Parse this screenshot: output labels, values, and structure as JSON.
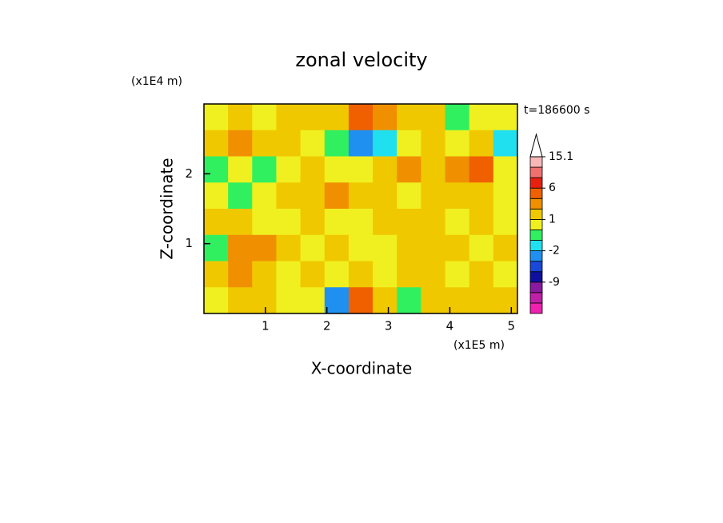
{
  "chart_data": {
    "type": "contour",
    "title": "zonal velocity",
    "time_label": "t=186600 s",
    "x_label": "X-coordinate",
    "y_label": "Z-coordinate",
    "x_unit": "(x1E5 m)",
    "y_unit": "(x1E4 m)",
    "xlim": [
      0,
      5.1
    ],
    "ylim": [
      0,
      3
    ],
    "xticks": [
      1,
      2,
      3,
      4,
      5
    ],
    "yticks": [
      1,
      2
    ],
    "z": [
      [
        0.5,
        1.5,
        0.5,
        1.5,
        1.5,
        1.5,
        3.5,
        2.5,
        1.5,
        1.5,
        -0.5,
        0.5,
        0.5
      ],
      [
        1.5,
        2.5,
        1.5,
        1.5,
        0.5,
        -0.5,
        -2.5,
        -1.5,
        0.5,
        1.5,
        0.5,
        1.5,
        -1.5
      ],
      [
        -0.5,
        0.5,
        -0.5,
        0.5,
        1.5,
        0.5,
        0.5,
        1.5,
        2.5,
        1.5,
        2.5,
        4.5,
        0.5
      ],
      [
        0.5,
        -0.5,
        0.5,
        1.5,
        1.5,
        2.5,
        1.5,
        1.5,
        0.5,
        1.5,
        1.5,
        1.5,
        0.5
      ],
      [
        1.5,
        1.5,
        0.5,
        0.5,
        1.5,
        0.5,
        0.5,
        1.5,
        1.5,
        1.5,
        0.5,
        1.5,
        0.5
      ],
      [
        -0.5,
        2.5,
        2.5,
        1.5,
        0.5,
        1.5,
        0.5,
        0.5,
        1.5,
        1.5,
        1.5,
        0.5,
        1.5
      ],
      [
        1.5,
        2.5,
        1.5,
        0.5,
        1.5,
        0.5,
        1.5,
        0.5,
        1.5,
        1.5,
        0.5,
        1.5,
        0.5
      ],
      [
        0.5,
        1.5,
        1.5,
        0.5,
        0.5,
        -2.5,
        3.5,
        1.5,
        -0.5,
        1.5,
        1.5,
        1.5,
        1.5
      ]
    ],
    "colorbar": {
      "levels": [
        -18,
        -15,
        -12,
        -9,
        -6,
        -3,
        -2,
        -1,
        0,
        1,
        2,
        3,
        6,
        9,
        12,
        15.1
      ],
      "colors": [
        "#f020b0",
        "#c020a8",
        "#8a1aa0",
        "#1010a0",
        "#1a48d8",
        "#2090f0",
        "#20e0f0",
        "#30f060",
        "#f0f020",
        "#f0c800",
        "#f09000",
        "#f06000",
        "#e82010",
        "#f07070",
        "#f8b8b8"
      ],
      "extend_color": "#ffffff",
      "ticks": [
        15.1,
        6,
        1,
        -2,
        -9
      ]
    }
  }
}
